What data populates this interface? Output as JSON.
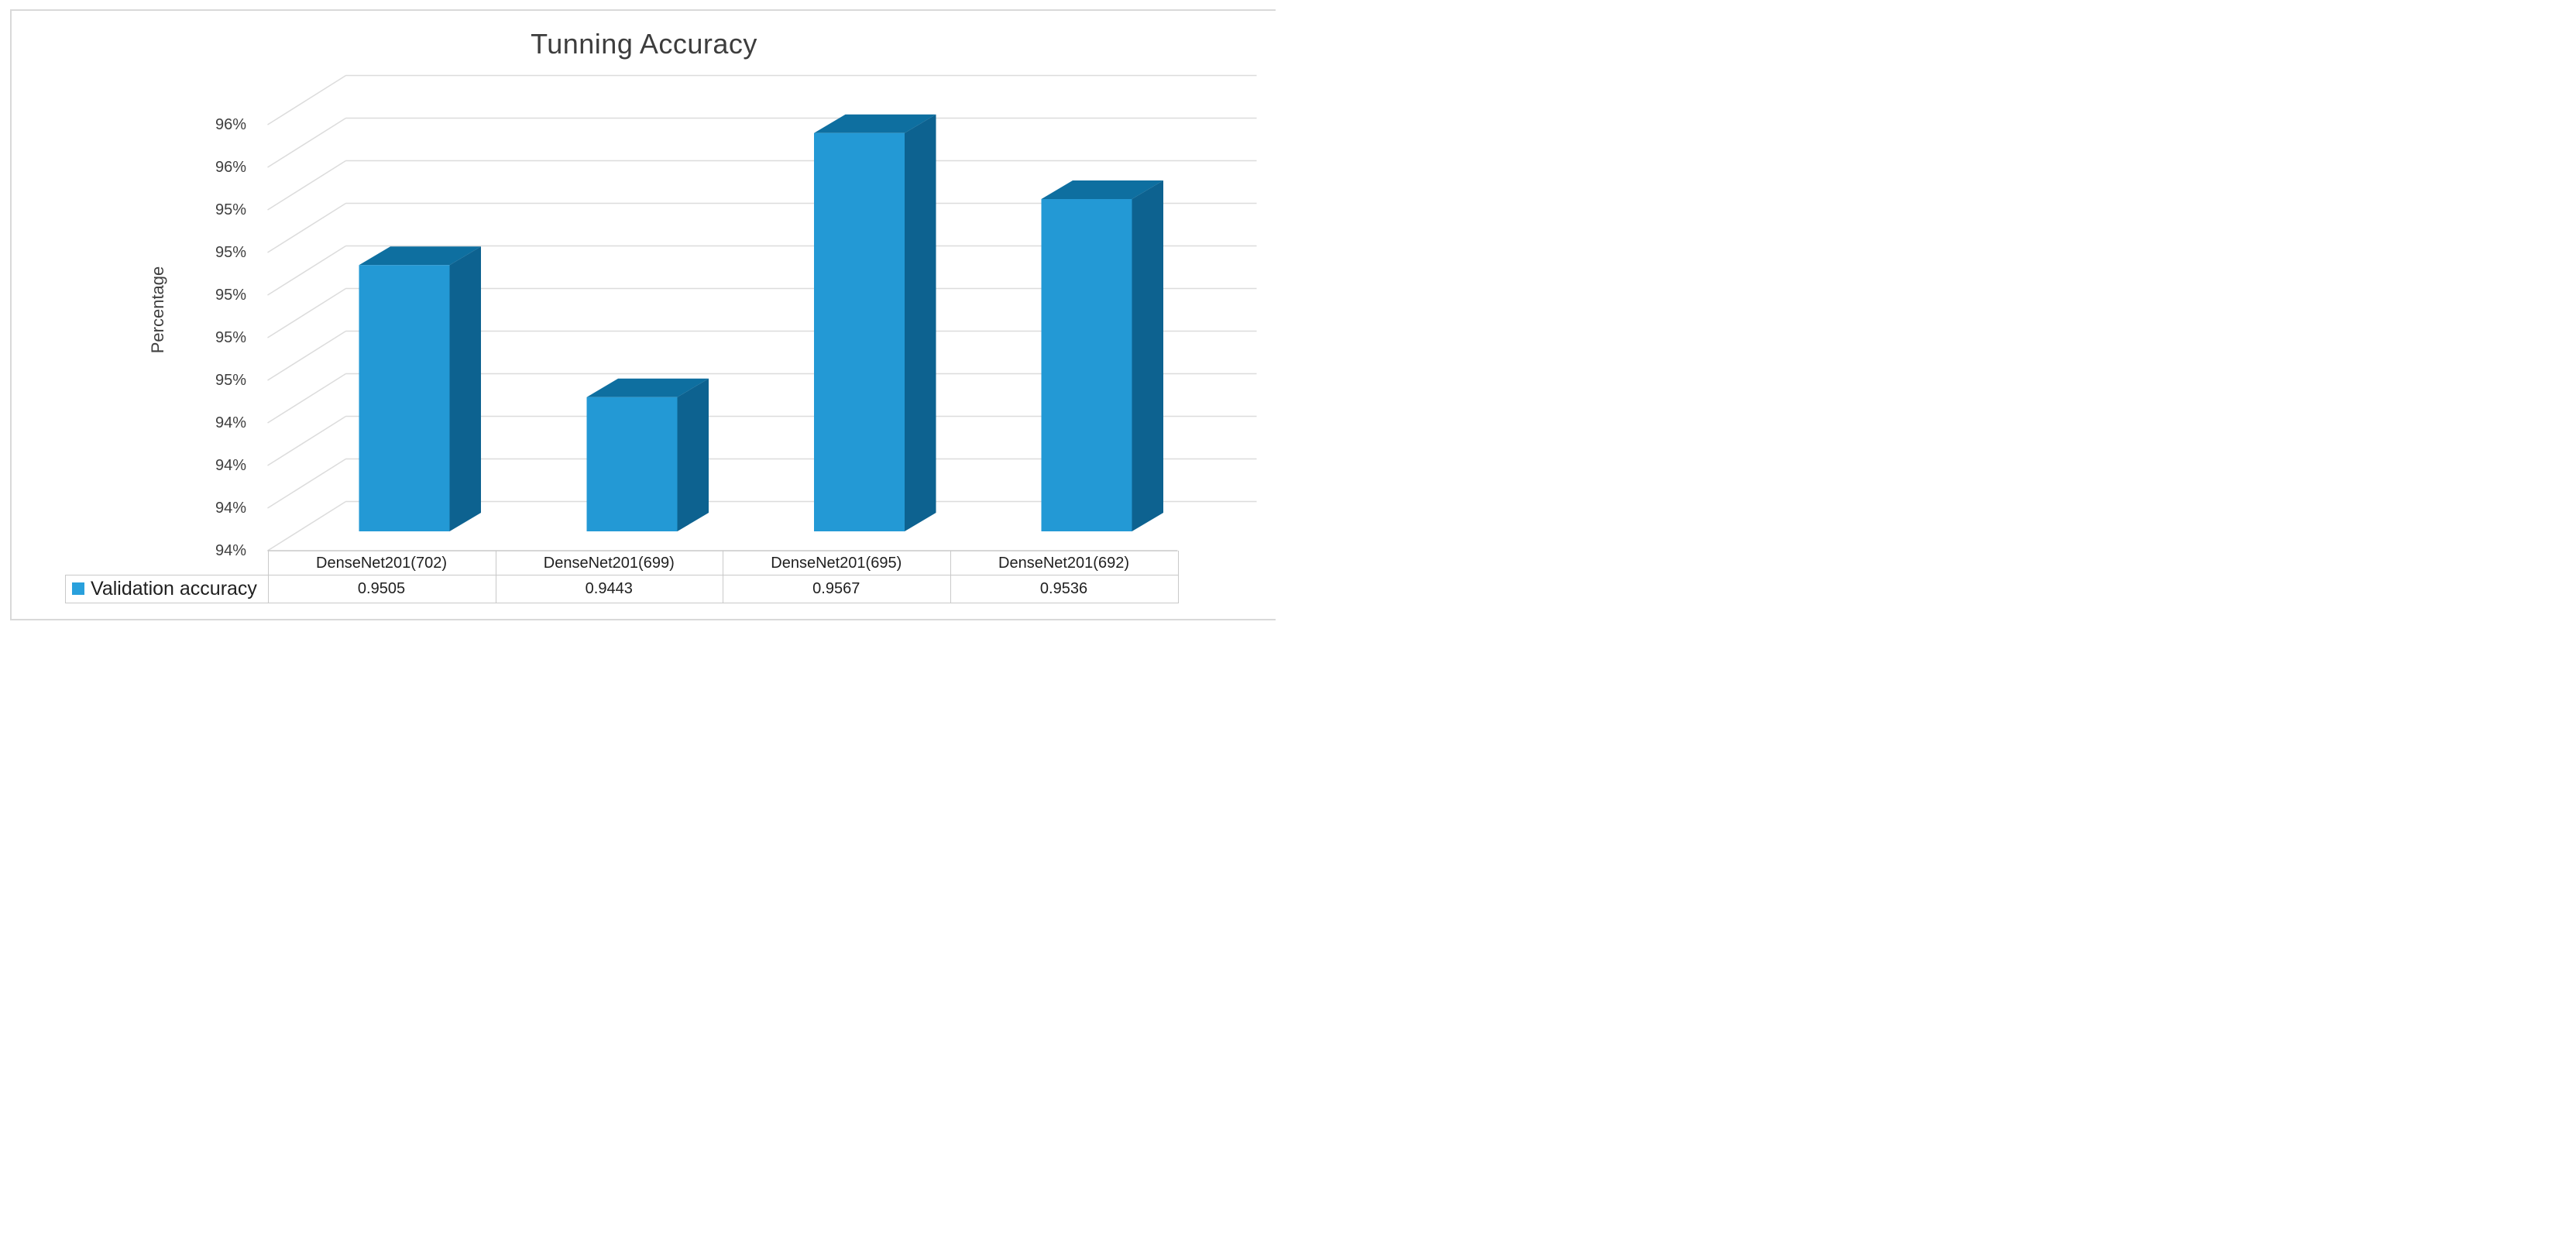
{
  "chart": {
    "title": "Tunning Accuracy",
    "y_axis_title": "Percentage"
  },
  "chart_data": {
    "type": "bar",
    "style": "3d-column",
    "title": "Tunning Accuracy",
    "ylabel": "Percentage",
    "categories": [
      "DenseNet201(702)",
      "DenseNet201(699)",
      "DenseNet201(695)",
      "DenseNet201(692)"
    ],
    "series": [
      {
        "name": "Validation accuracy",
        "values": [
          0.9505,
          0.9443,
          0.9567,
          0.9536
        ]
      }
    ],
    "y_axis": {
      "unit": "percent",
      "min": 93.8,
      "max": 95.8,
      "major_unit": 0.2,
      "tick_labels_top_to_bottom": [
        "96%",
        "96%",
        "95%",
        "95%",
        "95%",
        "95%",
        "95%",
        "94%",
        "94%",
        "94%",
        "94%"
      ]
    },
    "grid": true,
    "legend_position": "data-table-left"
  },
  "data_table": {
    "legend_label": "Validation accuracy",
    "values_display": [
      "0.9505",
      "0.9443",
      "0.9567",
      "0.9536"
    ]
  },
  "colors": {
    "bar_front": "#2399D5",
    "bar_top": "#0E6FA0",
    "bar_side": "#0D6290",
    "legend_swatch": "#29A0DC",
    "gridline": "#DCDCDC",
    "axis_line": "#C9C9C9",
    "table_border": "#C9C9C9",
    "chart_border": "#D9D9D9",
    "title_text": "#3D3D3D",
    "axis_text": "#3F3F3F",
    "table_text": "#1F1F1F"
  }
}
